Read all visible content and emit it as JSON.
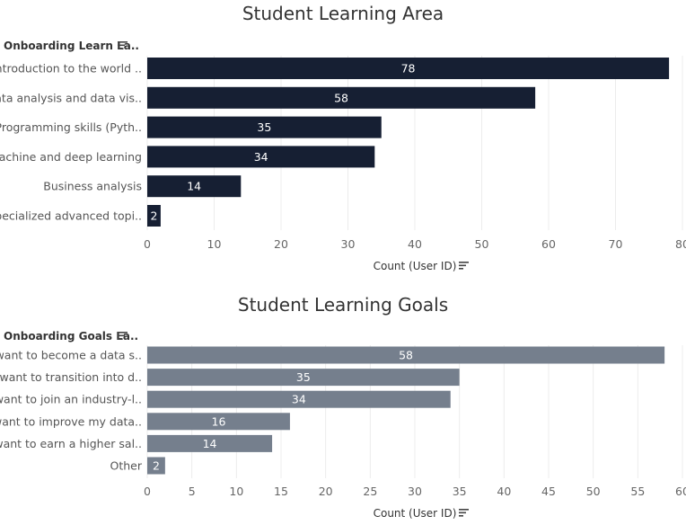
{
  "chart_data": [
    {
      "type": "bar",
      "orientation": "horizontal",
      "title": "Student Learning Area",
      "dimension_header": "Onboarding Learn La..",
      "xlabel": "Count (User ID)",
      "categories": [
        "Introduction to the world ..",
        "Data analysis and data vis..",
        "Programming skills (Pyth..",
        "Machine and deep learning",
        "Business analysis",
        "Specialized advanced topi.."
      ],
      "values": [
        78,
        58,
        35,
        34,
        14,
        2
      ],
      "xlim": [
        0,
        80
      ],
      "ticks": [
        0,
        10,
        20,
        30,
        40,
        50,
        60,
        70,
        80
      ],
      "bar_color": "#161f33",
      "grid": true
    },
    {
      "type": "bar",
      "orientation": "horizontal",
      "title": "Student Learning Goals",
      "dimension_header": "Onboarding Goals La..",
      "xlabel": "Count (User ID)",
      "categories": [
        "I want to become a data s..",
        "I want to transition into d..",
        "I want to join an industry-l..",
        "I want to improve my data..",
        "I want to earn a higher sal..",
        "Other"
      ],
      "values": [
        58,
        35,
        34,
        16,
        14,
        2
      ],
      "xlim": [
        0,
        60
      ],
      "ticks": [
        0,
        5,
        10,
        15,
        20,
        25,
        30,
        35,
        40,
        45,
        50,
        55,
        60
      ],
      "bar_color": "#757f8d",
      "grid": true
    }
  ]
}
